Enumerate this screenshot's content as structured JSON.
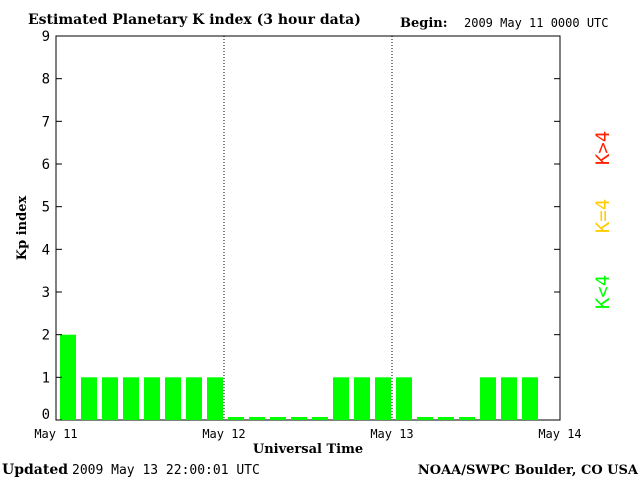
{
  "header": {
    "title": "Estimated Planetary K index (3 hour data)",
    "begin_label": "Begin:",
    "begin_value": "2009 May 11 0000 UTC"
  },
  "footer": {
    "updated_label": "Updated",
    "updated_value": "2009 May 13 22:00:01 UTC",
    "source": "NOAA/SWPC Boulder, CO USA"
  },
  "legend": {
    "high": "K>4",
    "equal": "K=4",
    "low": "K<4"
  },
  "colors": {
    "low": "#00ff00",
    "equal": "#ffcc00",
    "high": "#ff2200",
    "axis": "#000000",
    "divider": "#000000"
  },
  "chart_data": {
    "type": "bar",
    "title": "Estimated Planetary K index (3 hour data)",
    "xlabel": "Universal Time",
    "ylabel": "Kp index",
    "ylim": [
      0,
      9
    ],
    "y_ticks": [
      "0",
      "1",
      "2",
      "3",
      "4",
      "5",
      "6",
      "7",
      "8",
      "9"
    ],
    "x_ticks": [
      "May 11",
      "May 12",
      "May 13",
      "May 14"
    ],
    "bars_per_day": 8,
    "values": [
      2,
      1,
      1,
      1,
      1,
      1,
      1,
      1,
      0.07,
      0.07,
      0.07,
      0.07,
      0.07,
      1,
      1,
      1,
      1,
      0.07,
      0.07,
      0.07,
      1,
      1,
      1
    ],
    "grid": false,
    "day_dividers": true
  }
}
